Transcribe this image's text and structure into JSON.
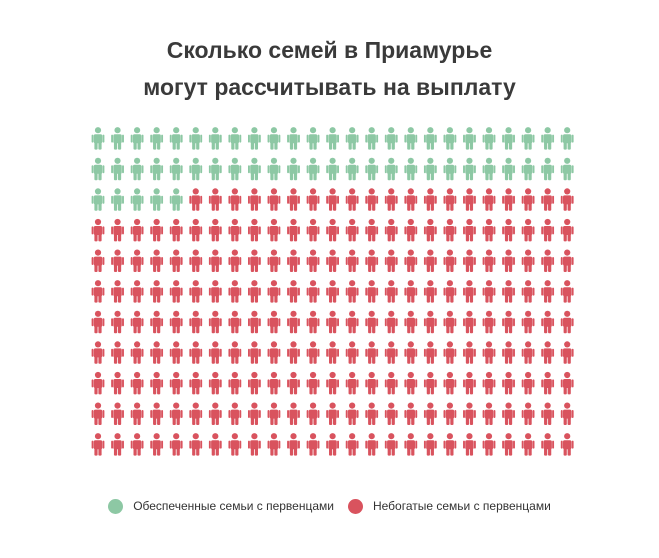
{
  "title": {
    "line1": "Сколько семей в Приамурье",
    "line2": "могут рассчитывать на выплату"
  },
  "chart_data": {
    "type": "pictogram",
    "unit_icon": "person-icon",
    "columns": 25,
    "rows": 11,
    "total_icons": 275,
    "series": [
      {
        "name": "Обеспеченные семьи с первенцами",
        "count": 55,
        "color": "#8dc8a4"
      },
      {
        "name": "Небогатые семьи с первенцами",
        "count": 220,
        "color": "#d9535e"
      }
    ],
    "legend_position": "bottom"
  }
}
